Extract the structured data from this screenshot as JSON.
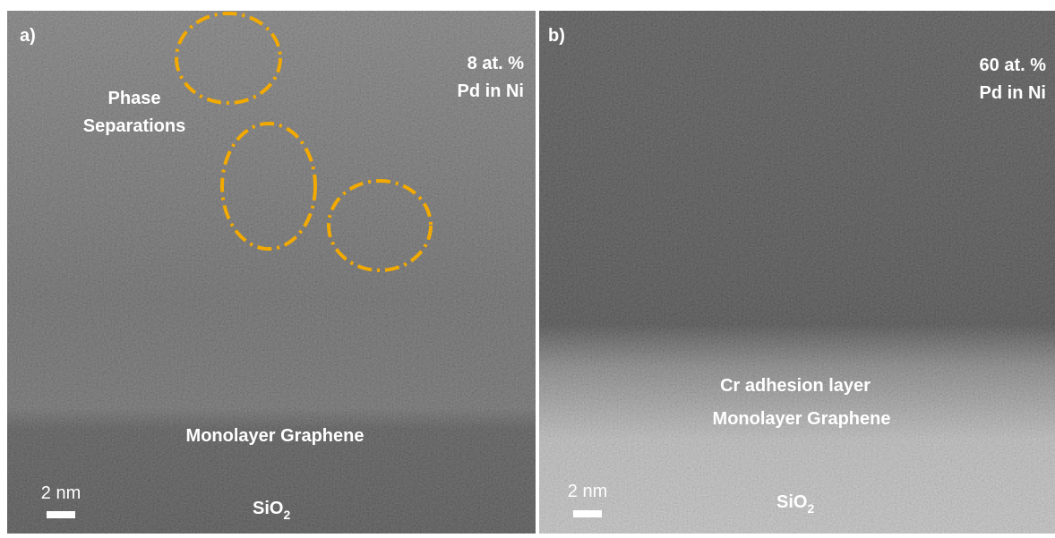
{
  "panel_a": {
    "label": "a)",
    "annotation": [
      "Phase",
      "Separations"
    ],
    "composition": [
      "8 at. %",
      "Pd in Ni"
    ],
    "layers": [
      "Monolayer Graphene"
    ],
    "scale_bar": "2 nm",
    "substrate": {
      "base": "SiO",
      "subscript": "2"
    }
  },
  "panel_b": {
    "label": "b)",
    "composition": [
      "60 at. %",
      "Pd in Ni"
    ],
    "layers": [
      "Cr adhesion layer",
      "Monolayer Graphene"
    ],
    "scale_bar": "2 nm",
    "substrate": {
      "base": "SiO",
      "subscript": "2"
    }
  }
}
